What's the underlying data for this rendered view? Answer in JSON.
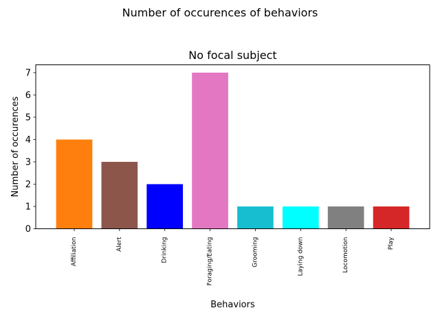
{
  "figure": {
    "suptitle": "Number of occurences of behaviors"
  },
  "chart_data": {
    "type": "bar",
    "title": "No focal subject",
    "xlabel": "Behaviors",
    "ylabel": "Number of occurences",
    "categories": [
      "Affiliation",
      "Alert",
      "Drinking",
      "Foraging/Eating",
      "Grooming",
      "Laying down",
      "Locomotion",
      "Play"
    ],
    "values": [
      4,
      3,
      2,
      7,
      1,
      1,
      1,
      1
    ],
    "colors": [
      "#ff7f0e",
      "#8c564b",
      "#0000ff",
      "#e377c2",
      "#17becf",
      "#00ffff",
      "#808080",
      "#d62728"
    ],
    "ylim": [
      0,
      7.35
    ],
    "yticks": [
      0,
      1,
      2,
      3,
      4,
      5,
      6,
      7
    ],
    "grid": false,
    "legend": "none"
  }
}
